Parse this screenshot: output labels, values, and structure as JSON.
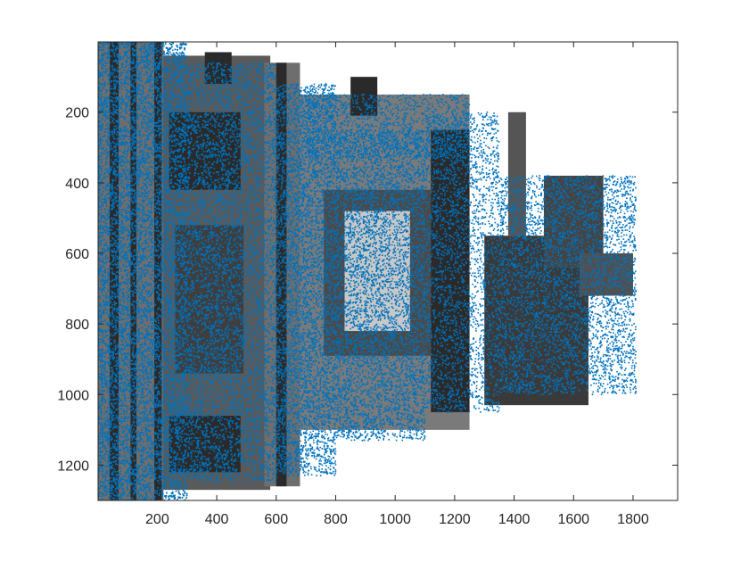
{
  "chart_data": {
    "type": "scatter",
    "title": "",
    "xlabel": "",
    "ylabel": "",
    "xlim": [
      1,
      1950
    ],
    "ylim": [
      1,
      1300
    ],
    "y_reversed": true,
    "grid": false,
    "legend": "none",
    "background_image": "grayscale photo of an ornate monument (statue on a decorated pedestal) shown rotated, filling the axes",
    "x_ticks": [
      200,
      400,
      600,
      800,
      1000,
      1200,
      1400,
      1600,
      1800
    ],
    "x_tick_labels": [
      "200",
      "400",
      "600",
      "800",
      "1000",
      "1200",
      "1400",
      "1600",
      "1800"
    ],
    "y_ticks": [
      200,
      400,
      600,
      800,
      1000,
      1200
    ],
    "y_tick_labels": [
      "200",
      "400",
      "600",
      "800",
      "1000",
      "1200"
    ],
    "series": [
      {
        "marker": "dot",
        "color": "#0072BD",
        "point_regions": [
          {
            "x": [
              1,
              300
            ],
            "y": [
              1,
              1300
            ],
            "density": 0.3
          },
          {
            "x": [
              300,
              600
            ],
            "y": [
              60,
              1250
            ],
            "density": 0.16
          },
          {
            "x": [
              600,
              800
            ],
            "y": [
              120,
              1230
            ],
            "density": 0.17
          },
          {
            "x": [
              800,
              1100
            ],
            "y": [
              250,
              1130
            ],
            "density": 0.15
          },
          {
            "x": [
              1100,
              1350
            ],
            "y": [
              200,
              1050
            ],
            "density": 0.1
          },
          {
            "x": [
              1350,
              1810
            ],
            "y": [
              380,
              1000
            ],
            "density": 0.12
          },
          {
            "x": [
              700,
              1250
            ],
            "y": [
              150,
              330
            ],
            "density": 0.1
          }
        ]
      }
    ]
  },
  "colors": {
    "points": "#0072BD",
    "axes": "#262626",
    "photo_dark": "#2a2a2a",
    "photo_mid": "#6e6e6e",
    "photo_light": "#c8c8c8"
  }
}
